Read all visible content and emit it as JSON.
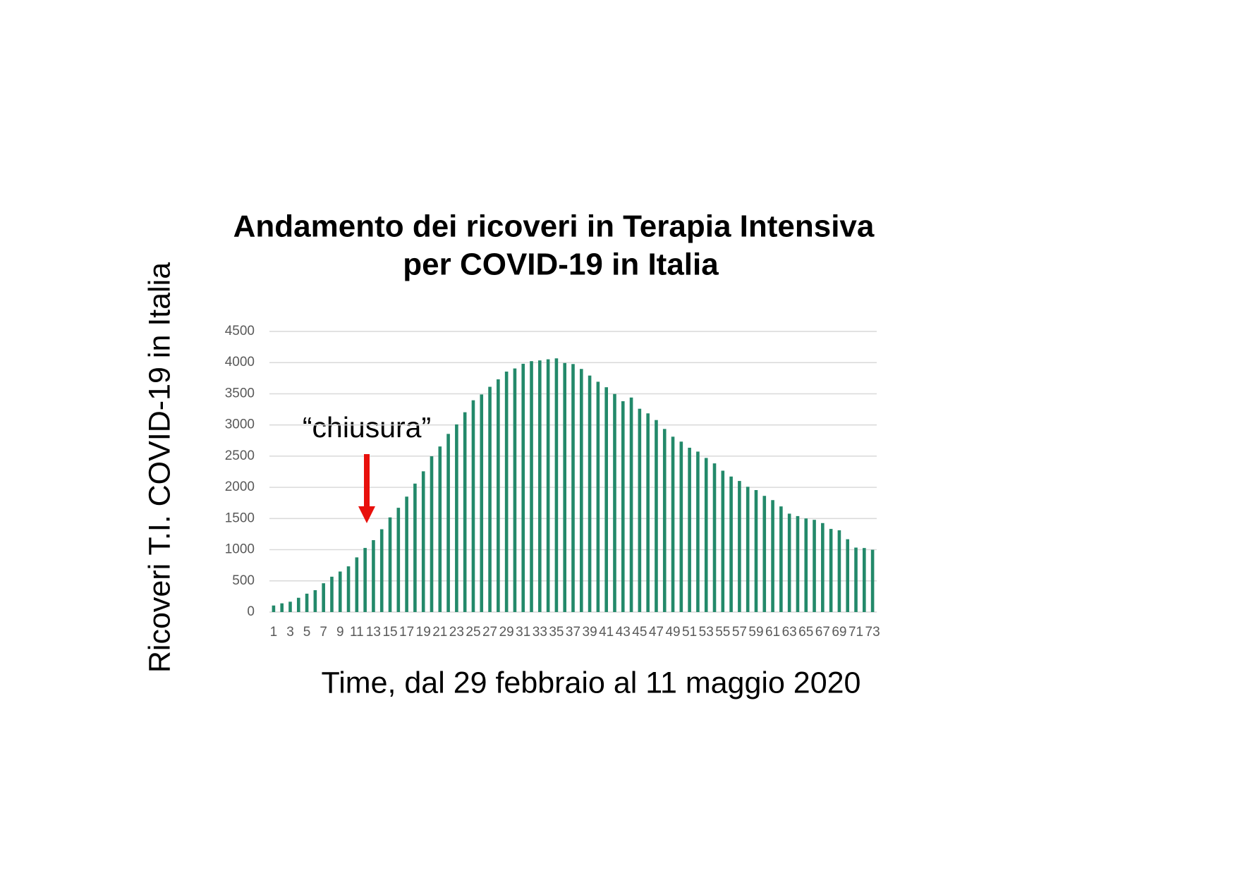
{
  "chart_data": {
    "type": "bar",
    "title": [
      "Andamento dei ricoveri in Terapia Intensiva",
      "per COVID-19 in Italia"
    ],
    "x_label": "Time, dal 29 febbraio al 11 maggio 2020",
    "y_label": "Ricoveri T.I. COVID-19 in Italia",
    "annotation": "“chiusura”",
    "categories": [
      "1",
      null,
      "3",
      null,
      "5",
      null,
      "7",
      null,
      "9",
      null,
      "11",
      null,
      "13",
      null,
      "15",
      null,
      "17",
      null,
      "19",
      null,
      "21",
      null,
      "23",
      null,
      "25",
      null,
      "27",
      null,
      "29",
      null,
      "31",
      null,
      "33",
      null,
      "35",
      null,
      "37",
      null,
      "39",
      null,
      "41",
      null,
      "43",
      null,
      "45",
      null,
      "47",
      null,
      "49",
      null,
      "51",
      null,
      "53",
      null,
      "55",
      null,
      "57",
      null,
      "59",
      null,
      "61",
      null,
      "63",
      null,
      "65",
      null,
      "67",
      null,
      "69",
      null,
      "71",
      null,
      "73"
    ],
    "values": [
      105,
      140,
      166,
      229,
      295,
      351,
      462,
      567,
      650,
      733,
      877,
      1028,
      1153,
      1328,
      1518,
      1672,
      1851,
      2060,
      2257,
      2498,
      2655,
      2857,
      3009,
      3204,
      3396,
      3489,
      3612,
      3732,
      3856,
      3906,
      3981,
      4023,
      4035,
      4053,
      4068,
      3994,
      3977,
      3898,
      3792,
      3693,
      3605,
      3497,
      3381,
      3440,
      3260,
      3186,
      3079,
      2936,
      2812,
      2733,
      2635,
      2573,
      2471,
      2384,
      2267,
      2173,
      2102,
      2009,
      1956,
      1863,
      1795,
      1694,
      1578,
      1539,
      1501,
      1479,
      1427,
      1333,
      1311,
      1168,
      1034,
      1027,
      999
    ],
    "color": "#23896a",
    "ylim": [
      0,
      4500
    ],
    "yticks": [
      0,
      500,
      1000,
      1500,
      2000,
      2500,
      3000,
      3500,
      4000,
      4500
    ],
    "grid": true,
    "annotation_at": 12
  }
}
